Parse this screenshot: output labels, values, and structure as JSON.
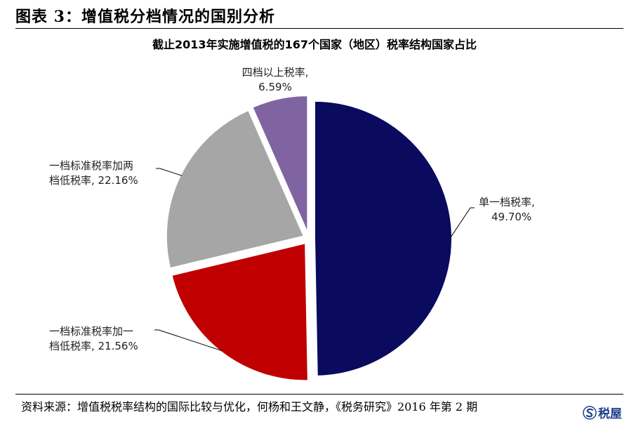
{
  "figure": {
    "title": "图表 3：增值税分档情况的国别分析"
  },
  "source": {
    "text": "资料来源：增值税税率结构的国际比较与优化，何杨和王文静，《税务研究》2016 年第 2 期"
  },
  "watermark": {
    "text": "税屋"
  },
  "colors": {
    "single": "#0a0a5e",
    "two_band": "#c00000",
    "three_band": "#a6a6a6",
    "four_plus": "#8064a2"
  },
  "chart_data": {
    "type": "pie",
    "title": "截止2013年实施增值税的167个国家（地区）税率结构国家占比",
    "slices": [
      {
        "name": "单一档税率",
        "value": 49.7,
        "label_line1": "单一档税率,",
        "label_line2": "49.70%",
        "color": "#0a0a5e"
      },
      {
        "name": "一档标准税率加一档低税率",
        "value": 21.56,
        "label_line1": "一档标准税率加一",
        "label_line2": "档低税率, 21.56%",
        "color": "#c00000"
      },
      {
        "name": "一档标准税率加两档低税率",
        "value": 22.16,
        "label_line1": "一档标准税率加两",
        "label_line2": "档低税率, 22.16%",
        "color": "#a6a6a6"
      },
      {
        "name": "四档以上税率",
        "value": 6.59,
        "label_line1": "四档以上税率,",
        "label_line2": "6.59%",
        "color": "#8064a2"
      }
    ],
    "start_angle_deg": 0,
    "direction": "clockwise",
    "exploded": true,
    "legend": "none"
  }
}
